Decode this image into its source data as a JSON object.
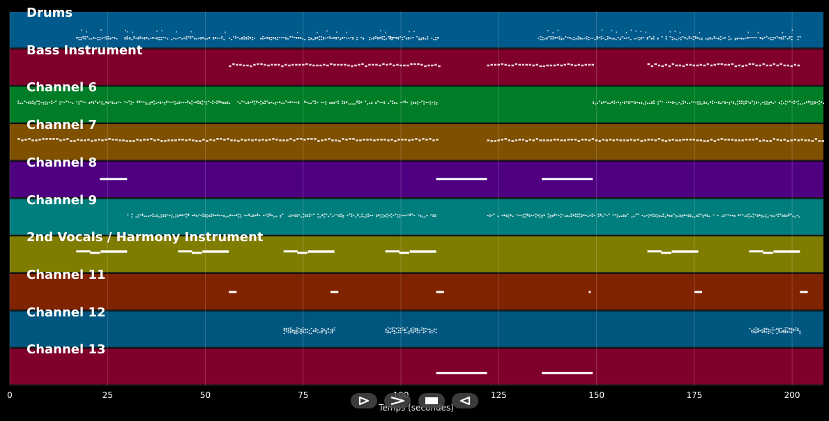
{
  "chart_data": {
    "type": "piano-roll",
    "xlabel": "Temps (secondes)",
    "xlim": [
      0,
      208
    ],
    "xticks": [
      0,
      25,
      50,
      75,
      100,
      125,
      150,
      175,
      200
    ],
    "grid": true,
    "tracks": [
      {
        "name": "Drums",
        "color": "#005a8b",
        "density": "dense",
        "segments": [
          [
            17,
            30
          ],
          [
            30,
            55
          ],
          [
            56,
            98
          ],
          [
            97,
            110
          ],
          [
            135,
            150
          ],
          [
            150,
            202
          ]
        ]
      },
      {
        "name": "Bass Instrument",
        "color": "#80002d",
        "density": "dashed",
        "segments": [
          [
            56,
            110
          ],
          [
            122,
            149
          ],
          [
            163,
            202
          ]
        ]
      },
      {
        "name": "Channel 6",
        "color": "#007d26",
        "density": "dense",
        "segments": [
          [
            2,
            109
          ],
          [
            149,
            208
          ]
        ]
      },
      {
        "name": "Channel 7",
        "color": "#7f5000",
        "density": "dashed",
        "segments": [
          [
            2,
            109
          ],
          [
            122,
            208
          ]
        ]
      },
      {
        "name": "Channel 8",
        "color": "#4e0080",
        "density": "solid",
        "segments": [
          [
            23,
            30
          ],
          [
            109,
            122
          ],
          [
            136,
            149
          ]
        ]
      },
      {
        "name": "Channel 9",
        "color": "#007d7d",
        "density": "dense",
        "segments": [
          [
            30,
            109
          ],
          [
            122,
            202
          ]
        ]
      },
      {
        "name": "2nd Vocals / Harmony Instrument",
        "color": "#7f7d00",
        "density": "phrase",
        "segments": [
          [
            17,
            30
          ],
          [
            43,
            56
          ],
          [
            70,
            83
          ],
          [
            96,
            109
          ],
          [
            163,
            176
          ],
          [
            189,
            202
          ]
        ]
      },
      {
        "name": "Channel 11",
        "color": "#7f2300",
        "density": "solid",
        "segments": [
          [
            56,
            58
          ],
          [
            82,
            84
          ],
          [
            109,
            111
          ],
          [
            148,
            148.5
          ],
          [
            175,
            177
          ],
          [
            202,
            204
          ]
        ]
      },
      {
        "name": "Channel 12",
        "color": "#00567f",
        "density": "dense",
        "segments": [
          [
            70,
            83
          ],
          [
            96,
            109
          ],
          [
            189,
            202
          ]
        ]
      },
      {
        "name": "Channel 13",
        "color": "#80002d",
        "density": "solid",
        "segments": [
          [
            109,
            122
          ],
          [
            136,
            149
          ]
        ]
      }
    ]
  },
  "transport": {
    "buttons": [
      {
        "name": "play-button",
        "icon": "play-icon"
      },
      {
        "name": "forward-button",
        "icon": "forward-icon"
      },
      {
        "name": "stop-button",
        "icon": "stop-icon"
      },
      {
        "name": "rewind-button",
        "icon": "rewind-icon"
      }
    ]
  }
}
